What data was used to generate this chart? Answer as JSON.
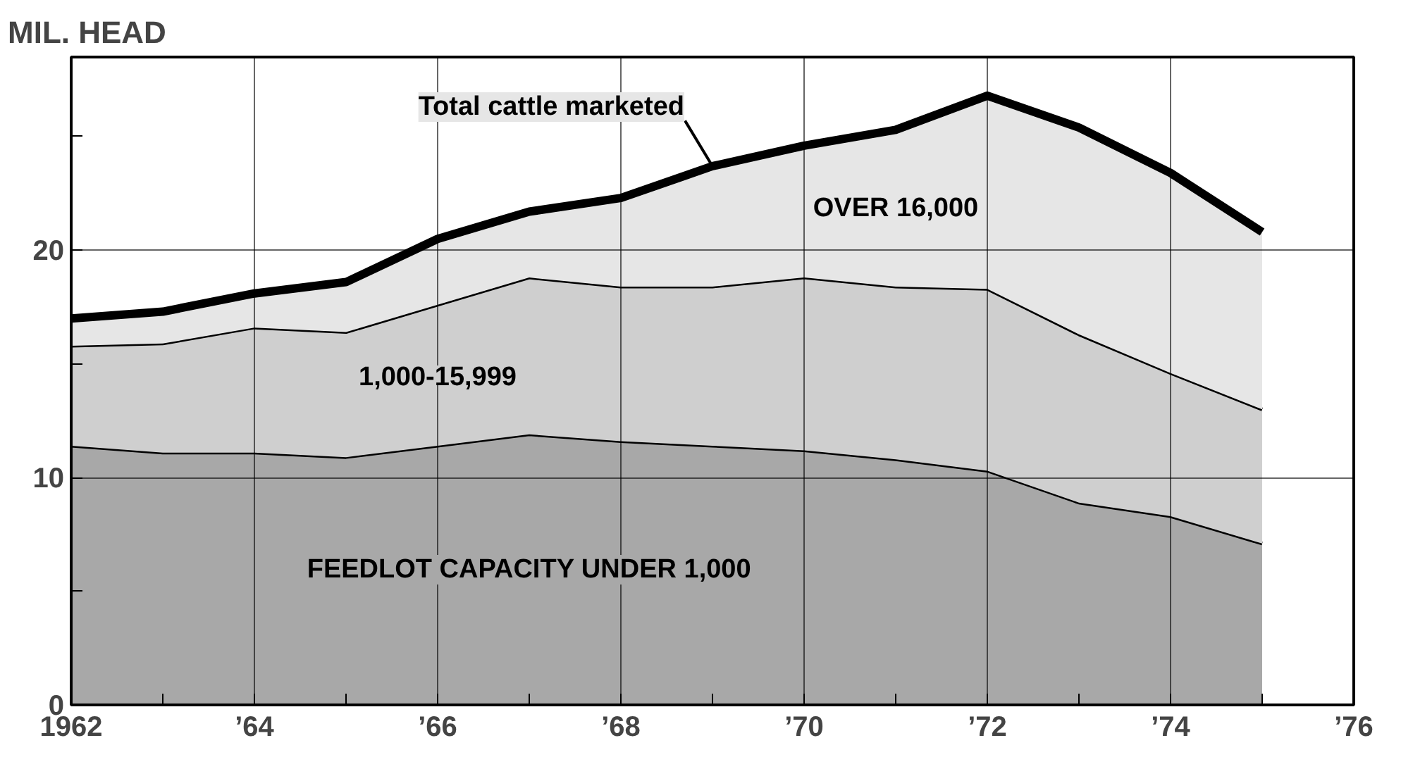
{
  "chart_data": {
    "type": "area",
    "stacked": true,
    "ylabel": "MIL. HEAD",
    "x": [
      1962,
      1963,
      1964,
      1965,
      1966,
      1967,
      1968,
      1969,
      1970,
      1971,
      1972,
      1973,
      1974,
      1975
    ],
    "series": [
      {
        "name": "FEEDLOT CAPACITY UNDER 1,000",
        "color": "#a8a8a8",
        "values": [
          11.4,
          11.1,
          11.1,
          10.9,
          11.4,
          11.9,
          11.6,
          11.4,
          11.2,
          10.8,
          10.3,
          8.9,
          8.3,
          7.1
        ]
      },
      {
        "name": "1,000-15,999",
        "color": "#cfcfcf",
        "values": [
          4.4,
          4.8,
          5.5,
          5.5,
          6.2,
          6.9,
          6.8,
          7.0,
          7.6,
          7.6,
          8.0,
          7.4,
          6.3,
          5.9
        ]
      },
      {
        "name": "OVER 16,000",
        "color": "#e6e6e6",
        "values": [
          1.2,
          1.4,
          1.5,
          2.2,
          2.9,
          2.9,
          3.9,
          5.3,
          5.8,
          6.9,
          8.5,
          9.1,
          8.8,
          7.8
        ]
      }
    ],
    "annotations": [
      {
        "text": "Total cattle marketed",
        "x": 1969,
        "y": 23.7
      }
    ],
    "xlim": [
      1962,
      1976
    ],
    "ylim": [
      0,
      28.5
    ],
    "xticks": [
      {
        "value": 1962,
        "label": "1962"
      },
      {
        "value": 1963,
        "label": null
      },
      {
        "value": 1964,
        "label": "’64"
      },
      {
        "value": 1965,
        "label": null
      },
      {
        "value": 1966,
        "label": "’66"
      },
      {
        "value": 1967,
        "label": null
      },
      {
        "value": 1968,
        "label": "’68"
      },
      {
        "value": 1969,
        "label": null
      },
      {
        "value": 1970,
        "label": "’70"
      },
      {
        "value": 1971,
        "label": null
      },
      {
        "value": 1972,
        "label": "’72"
      },
      {
        "value": 1973,
        "label": null
      },
      {
        "value": 1974,
        "label": "’74"
      },
      {
        "value": 1975,
        "label": null
      },
      {
        "value": 1976,
        "label": "’76"
      }
    ],
    "yticks": [
      0,
      {
        "value": 5,
        "label": null
      },
      10,
      {
        "value": 15,
        "label": null
      },
      20,
      {
        "value": 25,
        "label": null
      }
    ],
    "grid": true,
    "legend": false
  }
}
